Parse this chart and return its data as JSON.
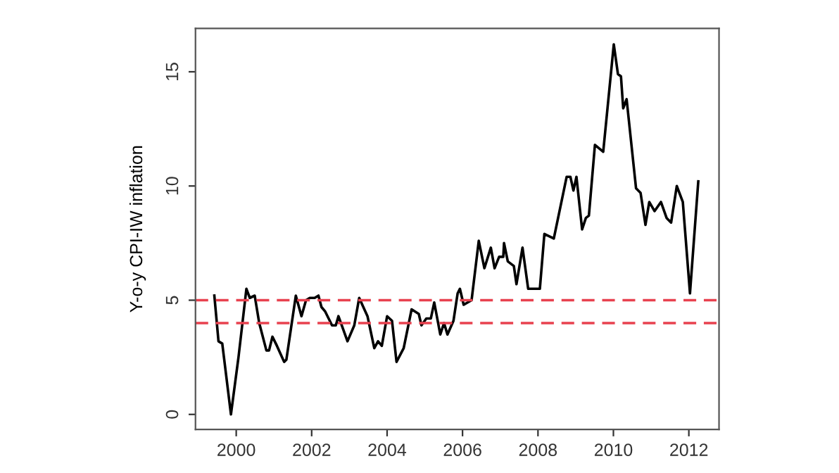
{
  "chart_data": {
    "type": "line",
    "ylabel": "Y-o-y CPI-IW inflation",
    "x": [
      1999.42,
      1999.53,
      1999.63,
      1999.86,
      2000.06,
      2000.27,
      2000.36,
      2000.49,
      2000.61,
      2000.8,
      2000.87,
      2000.96,
      2001.08,
      2001.27,
      2001.33,
      2001.58,
      2001.73,
      2001.85,
      2001.95,
      2002.08,
      2002.18,
      2002.26,
      2002.36,
      2002.54,
      2002.64,
      2002.71,
      2002.95,
      2003.13,
      2003.26,
      2003.48,
      2003.66,
      2003.76,
      2003.86,
      2004.0,
      2004.13,
      2004.25,
      2004.44,
      2004.65,
      2004.84,
      2004.91,
      2005.04,
      2005.16,
      2005.25,
      2005.41,
      2005.51,
      2005.6,
      2005.76,
      2005.87,
      2005.93,
      2006.03,
      2006.24,
      2006.43,
      2006.58,
      2006.75,
      2006.85,
      2006.97,
      2007.08,
      2007.1,
      2007.2,
      2007.36,
      2007.43,
      2007.59,
      2007.74,
      2008.05,
      2008.17,
      2008.42,
      2008.76,
      2008.86,
      2008.94,
      2009.02,
      2009.17,
      2009.27,
      2009.35,
      2009.51,
      2009.73,
      2010.01,
      2010.12,
      2010.2,
      2010.26,
      2010.35,
      2010.6,
      2010.72,
      2010.85,
      2010.95,
      2011.09,
      2011.26,
      2011.41,
      2011.53,
      2011.68,
      2011.84,
      2012.03,
      2012.25
    ],
    "series": [
      {
        "color": "#000000",
        "values": [
          5.2,
          3.2,
          3.1,
          0.0,
          2.5,
          5.5,
          5.1,
          5.2,
          4.0,
          2.8,
          2.8,
          3.4,
          3.0,
          2.3,
          2.4,
          5.2,
          4.3,
          5.0,
          5.1,
          5.1,
          5.2,
          4.7,
          4.5,
          3.9,
          3.9,
          4.3,
          3.2,
          3.9,
          5.1,
          4.3,
          2.9,
          3.2,
          3.0,
          4.3,
          4.1,
          2.3,
          2.9,
          4.6,
          4.4,
          3.9,
          4.2,
          4.2,
          4.9,
          3.5,
          4.0,
          3.5,
          4.1,
          5.3,
          5.5,
          4.8,
          5.0,
          7.6,
          6.4,
          7.3,
          6.4,
          6.9,
          6.9,
          7.5,
          6.7,
          6.5,
          5.7,
          7.3,
          5.5,
          5.5,
          7.9,
          7.7,
          10.4,
          10.4,
          9.8,
          10.4,
          8.1,
          8.6,
          8.7,
          11.8,
          11.5,
          16.2,
          14.9,
          14.8,
          13.4,
          13.8,
          9.9,
          9.7,
          8.3,
          9.3,
          8.9,
          9.3,
          8.6,
          8.4,
          10.0,
          9.3,
          5.3,
          10.2
        ]
      }
    ],
    "xlim": [
      1998.92,
      2012.8
    ],
    "ylim": [
      -0.66,
      16.9
    ],
    "xticks": [
      2000,
      2002,
      2004,
      2006,
      2008,
      2010,
      2012
    ],
    "yticks": [
      0,
      5,
      10,
      15
    ],
    "ref_lines": [
      {
        "axis": "y",
        "value": 5,
        "color": "#e8414f",
        "line_style": "dashed"
      },
      {
        "axis": "y",
        "value": 4,
        "color": "#e8414f",
        "line_style": "dashed"
      }
    ]
  }
}
